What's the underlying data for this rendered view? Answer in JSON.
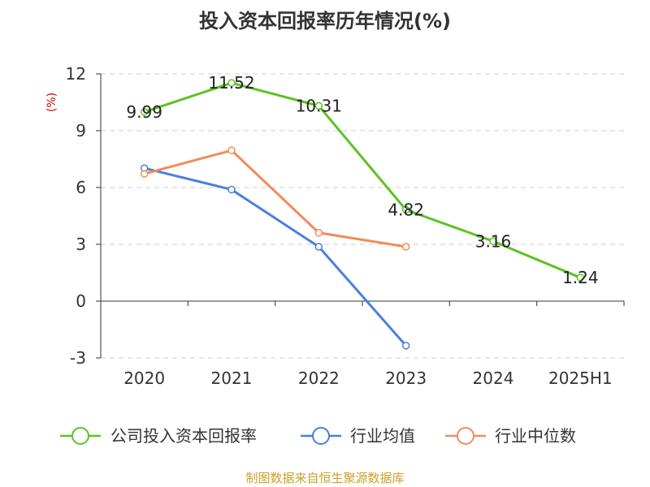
{
  "title": "投入资本回报率历年情况(%)",
  "source": "制图数据来自恒生聚源数据库",
  "chart_data": {
    "type": "line",
    "categories": [
      "2020",
      "2021",
      "2022",
      "2023",
      "2024",
      "2025H1"
    ],
    "ylabel": "(%)",
    "ylim": [
      -3,
      12
    ],
    "yticks": [
      "-3",
      "0",
      "3",
      "6",
      "9",
      "12"
    ],
    "grid": true,
    "legend_position": "bottom",
    "series": [
      {
        "name": "公司投入资本回报率",
        "color": "#5bc321",
        "values": [
          9.99,
          11.52,
          10.31,
          4.82,
          3.16,
          1.24
        ],
        "labels": [
          "9.99",
          "11.52",
          "10.31",
          "4.82",
          "3.16",
          "1.24"
        ],
        "show_labels": true
      },
      {
        "name": "行业均值",
        "color": "#4a7fdc",
        "values": [
          7.02,
          5.89,
          2.87,
          -2.35,
          null,
          null
        ],
        "show_labels": false
      },
      {
        "name": "行业中位数",
        "color": "#f08c5a",
        "values": [
          6.72,
          7.96,
          3.61,
          2.87,
          null,
          null
        ],
        "show_labels": false
      }
    ]
  }
}
